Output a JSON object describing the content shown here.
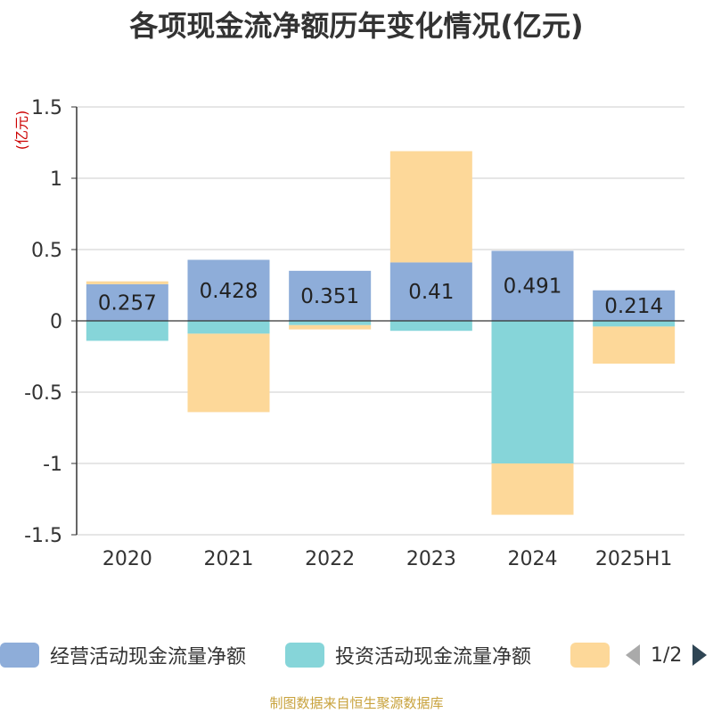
{
  "title": "各项现金流净额历年变化情况(亿元)",
  "source": "制图数据来自恒生聚源数据库",
  "pager": "1/2",
  "chart_data": {
    "type": "bar",
    "stacked": true,
    "categories": [
      "2020",
      "2021",
      "2022",
      "2023",
      "2024",
      "2025H1"
    ],
    "ylabel": "(亿元)",
    "ylim": [
      -1.5,
      1.5
    ],
    "yticks": [
      "1.5",
      "1",
      "0.5",
      "0",
      "-0.5",
      "-1",
      "-1.5"
    ],
    "grid": true,
    "series": [
      {
        "name": "经营活动现金流量净额",
        "color": "#8eadd9",
        "values": [
          0.257,
          0.428,
          0.351,
          0.41,
          0.491,
          0.214
        ],
        "labels": [
          "0.257",
          "0.428",
          "0.351",
          "0.41",
          "0.491",
          "0.214"
        ]
      },
      {
        "name": "投资活动现金流量净额",
        "color": "#86d5d9",
        "values": [
          -0.14,
          -0.09,
          -0.03,
          -0.07,
          -1.0,
          -0.04
        ]
      },
      {
        "name": "",
        "color": "#fdd899",
        "values": [
          0.02,
          -0.55,
          -0.03,
          0.78,
          -0.36,
          -0.26
        ]
      }
    ]
  }
}
